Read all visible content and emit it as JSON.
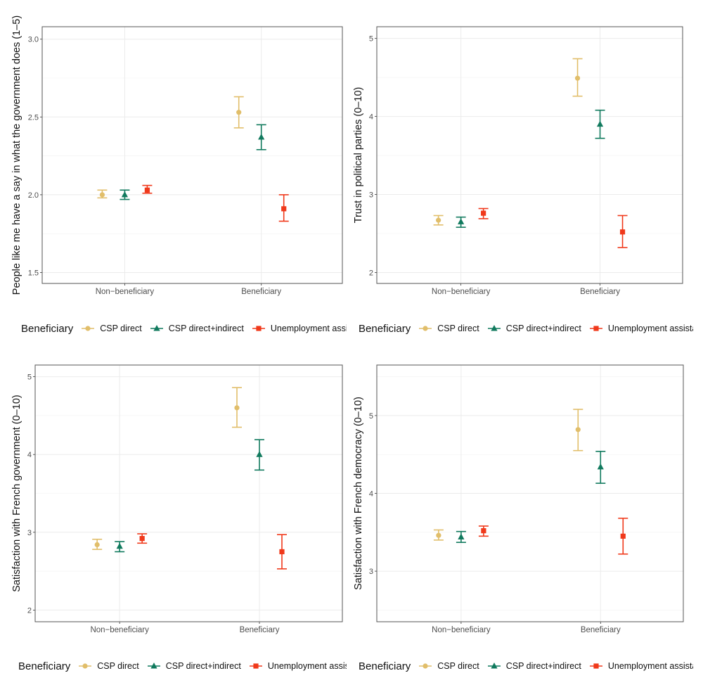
{
  "colors": {
    "CSP direct": "#E1BE6A",
    "CSP direct+indirect": "#117A5E",
    "Unemployment assistance": "#F0391B"
  },
  "legend": {
    "title": "Beneficiary",
    "items": [
      "CSP direct",
      "CSP direct+indirect",
      "Unemployment assistance"
    ]
  },
  "chart_data": [
    {
      "type": "errorbar",
      "ylabel": "People like me have a say in what the government does (1–5)",
      "categories": [
        "Non−beneficiary",
        "Beneficiary"
      ],
      "yticks": [
        "1.5",
        "2.0",
        "2.5",
        "3.0"
      ],
      "ylim": [
        1.43,
        3.08
      ],
      "series": [
        {
          "name": "CSP direct",
          "shape": "circle",
          "values": [
            2.0,
            2.53
          ],
          "lower": [
            1.98,
            2.43
          ],
          "upper": [
            2.03,
            2.63
          ]
        },
        {
          "name": "CSP direct+indirect",
          "shape": "triangle",
          "values": [
            2.0,
            2.37
          ],
          "lower": [
            1.97,
            2.29
          ],
          "upper": [
            2.03,
            2.45
          ]
        },
        {
          "name": "Unemployment assistance",
          "shape": "square",
          "values": [
            2.03,
            1.91
          ],
          "lower": [
            2.01,
            1.83
          ],
          "upper": [
            2.06,
            2.0
          ]
        }
      ]
    },
    {
      "type": "errorbar",
      "ylabel": "Trust in political parties (0–10)",
      "categories": [
        "Non−beneficiary",
        "Beneficiary"
      ],
      "yticks": [
        "2",
        "3",
        "4",
        "5"
      ],
      "ylim": [
        1.86,
        5.15
      ],
      "series": [
        {
          "name": "CSP direct",
          "shape": "circle",
          "values": [
            2.67,
            4.49
          ],
          "lower": [
            2.61,
            4.26
          ],
          "upper": [
            2.73,
            4.74
          ]
        },
        {
          "name": "CSP direct+indirect",
          "shape": "triangle",
          "values": [
            2.65,
            3.9
          ],
          "lower": [
            2.58,
            3.72
          ],
          "upper": [
            2.71,
            4.08
          ]
        },
        {
          "name": "Unemployment assistance",
          "shape": "square",
          "values": [
            2.76,
            2.52
          ],
          "lower": [
            2.69,
            2.32
          ],
          "upper": [
            2.82,
            2.73
          ]
        }
      ]
    },
    {
      "type": "errorbar",
      "ylabel": "Satisfaction with French government (0–10)",
      "categories": [
        "Non−beneficiary",
        "Beneficiary"
      ],
      "yticks": [
        "2",
        "3",
        "4",
        "5"
      ],
      "ylim": [
        1.85,
        5.15
      ],
      "series": [
        {
          "name": "CSP direct",
          "shape": "circle",
          "values": [
            2.84,
            4.6
          ],
          "lower": [
            2.78,
            4.35
          ],
          "upper": [
            2.91,
            4.86
          ]
        },
        {
          "name": "CSP direct+indirect",
          "shape": "triangle",
          "values": [
            2.82,
            4.0
          ],
          "lower": [
            2.75,
            3.8
          ],
          "upper": [
            2.88,
            4.19
          ]
        },
        {
          "name": "Unemployment assistance",
          "shape": "square",
          "values": [
            2.92,
            2.75
          ],
          "lower": [
            2.86,
            2.53
          ],
          "upper": [
            2.98,
            2.97
          ]
        }
      ]
    },
    {
      "type": "errorbar",
      "ylabel": "Satisfaction with French democracy (0–10)",
      "categories": [
        "Non−beneficiary",
        "Beneficiary"
      ],
      "yticks": [
        "3",
        "4",
        "5"
      ],
      "ylim": [
        2.35,
        5.65
      ],
      "series": [
        {
          "name": "CSP direct",
          "shape": "circle",
          "values": [
            3.46,
            4.82
          ],
          "lower": [
            3.4,
            4.55
          ],
          "upper": [
            3.53,
            5.08
          ]
        },
        {
          "name": "CSP direct+indirect",
          "shape": "triangle",
          "values": [
            3.44,
            4.34
          ],
          "lower": [
            3.37,
            4.13
          ],
          "upper": [
            3.51,
            4.54
          ]
        },
        {
          "name": "Unemployment assistance",
          "shape": "square",
          "values": [
            3.52,
            3.45
          ],
          "lower": [
            3.45,
            3.22
          ],
          "upper": [
            3.58,
            3.68
          ]
        }
      ]
    }
  ]
}
